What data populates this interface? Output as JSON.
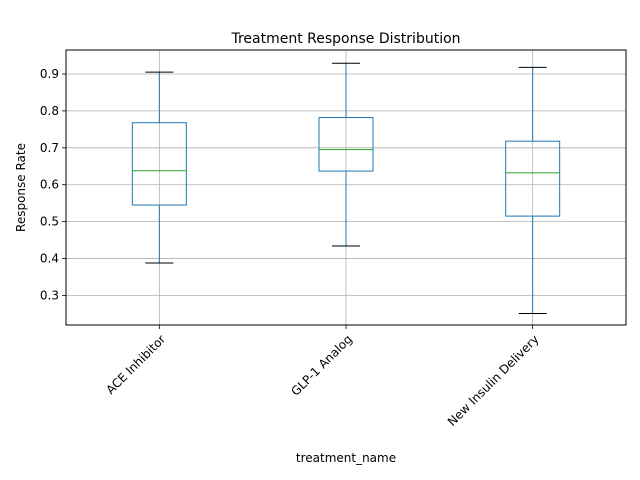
{
  "chart_data": {
    "type": "box",
    "title": "Treatment Response Distribution",
    "xlabel": "treatment_name",
    "ylabel": "Response Rate",
    "ylim": [
      0.22,
      0.965
    ],
    "yticks": [
      0.3,
      0.4,
      0.5,
      0.6,
      0.7,
      0.8,
      0.9
    ],
    "ytick_labels": [
      "0.3",
      "0.4",
      "0.5",
      "0.6",
      "0.7",
      "0.8",
      "0.9"
    ],
    "grid": true,
    "categories": [
      "ACE Inhibitor",
      "GLP-1 Analog",
      "New Insulin Delivery"
    ],
    "boxes": [
      {
        "whisker_low": 0.388,
        "q1": 0.545,
        "median": 0.638,
        "q3": 0.768,
        "whisker_high": 0.905
      },
      {
        "whisker_low": 0.434,
        "q1": 0.637,
        "median": 0.695,
        "q3": 0.782,
        "whisker_high": 0.929
      },
      {
        "whisker_low": 0.251,
        "q1": 0.515,
        "median": 0.632,
        "q3": 0.718,
        "whisker_high": 0.918
      }
    ],
    "colors": {
      "box": "#1f77b4",
      "median": "#2ca02c",
      "whisker": "#1f77b4",
      "cap": "#000000",
      "grid": "#b0b0b0"
    }
  }
}
